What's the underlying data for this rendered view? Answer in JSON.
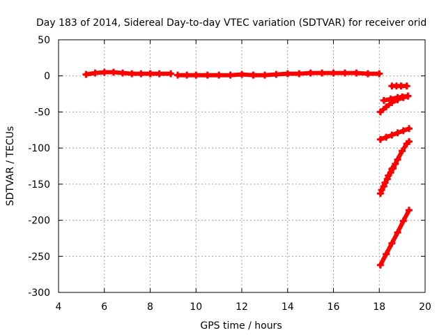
{
  "chart_data": {
    "type": "scatter",
    "title": "Day 183 of 2014, Sidereal Day-to-day VTEC variation (SDTVAR) for receiver orid",
    "xlabel": "GPS time / hours",
    "ylabel": "SDTVAR / TECUs",
    "xlim": [
      4,
      20
    ],
    "ylim": [
      -300,
      50
    ],
    "xticks": [
      4,
      6,
      8,
      10,
      12,
      14,
      16,
      18,
      20
    ],
    "yticks": [
      50,
      0,
      -50,
      -100,
      -150,
      -200,
      -250,
      -300
    ],
    "grid": true,
    "legend": "none",
    "marker": "plus",
    "color": "#ff0000",
    "series": [
      {
        "segments": [
          {
            "x": [
              5.2,
              5.6,
              6.0,
              6.4,
              6.8,
              7.2,
              7.6,
              8.0,
              8.4,
              8.9
            ],
            "y": [
              2,
              4,
              5,
              5,
              4,
              3,
              3,
              3,
              3,
              3
            ]
          },
          {
            "x": [
              9.2,
              9.6,
              10.0,
              10.5,
              11.0,
              11.5,
              12.0,
              12.5,
              13.0,
              13.5,
              14.0,
              14.5,
              15.0,
              15.5,
              16.0,
              16.5,
              17.0,
              17.5,
              18.0
            ],
            "y": [
              1,
              1,
              1,
              1,
              1,
              1,
              2,
              1,
              1,
              2,
              3,
              3,
              4,
              4,
              4,
              4,
              4,
              3,
              3
            ]
          },
          {
            "x": [
              18.55,
              18.75,
              18.95,
              19.2
            ],
            "y": [
              -14,
              -14,
              -14,
              -14
            ]
          },
          {
            "x": [
              18.2,
              18.5,
              18.8,
              19.0,
              19.25
            ],
            "y": [
              -34,
              -32,
              -30,
              -29,
              -28
            ]
          },
          {
            "x": [
              18.05,
              18.3,
              18.55,
              18.8,
              19.05,
              19.25
            ],
            "y": [
              -50,
              -43,
              -37,
              -33,
              -30,
              -28
            ]
          },
          {
            "x": [
              18.05,
              18.3,
              18.55,
              18.8,
              19.05,
              19.3
            ],
            "y": [
              -88,
              -85,
              -82,
              -79,
              -76,
              -73
            ]
          },
          {
            "x": [
              18.05,
              18.2,
              18.35,
              18.5,
              18.6
            ],
            "y": [
              -163,
              -153,
              -143,
              -134,
              -128
            ]
          },
          {
            "x": [
              18.1,
              18.25,
              18.4,
              18.55,
              18.7
            ],
            "y": [
              -158,
              -148,
              -138,
              -129,
              -122
            ]
          },
          {
            "x": [
              18.6,
              18.8,
              19.0,
              19.2,
              19.3
            ],
            "y": [
              -128,
              -116,
              -104,
              -94,
              -91
            ]
          },
          {
            "x": [
              18.05,
              18.3,
              18.55,
              18.8,
              19.05,
              19.3
            ],
            "y": [
              -262,
              -247,
              -232,
              -217,
              -201,
              -186
            ]
          }
        ]
      }
    ]
  }
}
